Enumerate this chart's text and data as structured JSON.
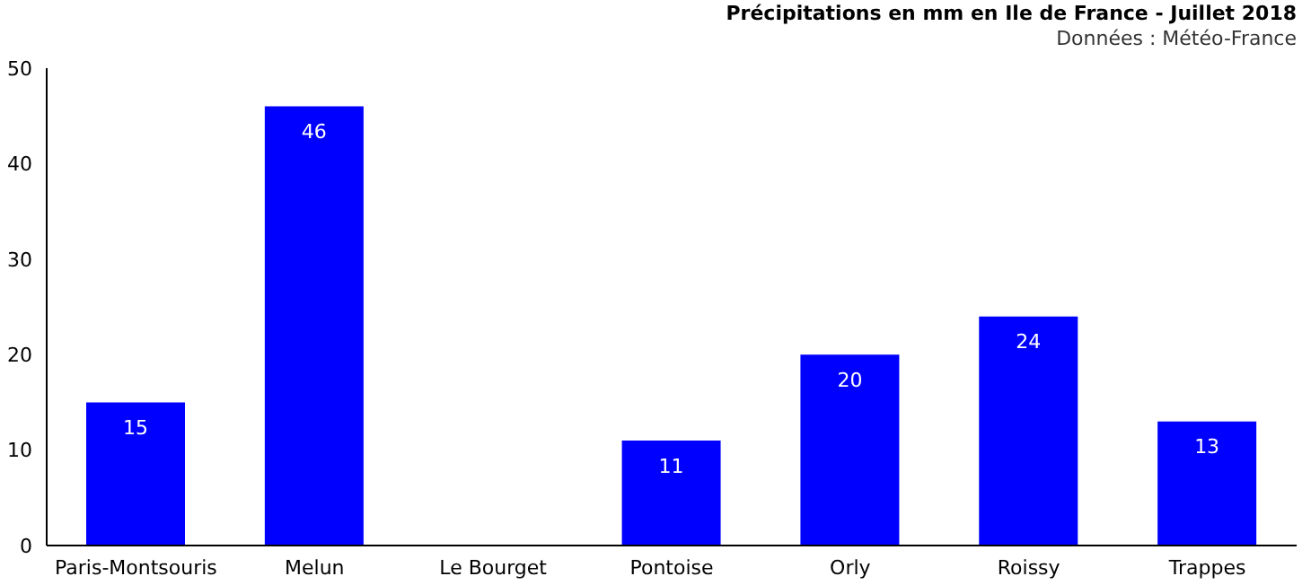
{
  "chart_data": {
    "type": "bar",
    "title": "Précipitations en mm en Ile de France - Juillet 2018",
    "subtitle": "Données : Météo-France",
    "categories": [
      "Paris-Montsouris",
      "Melun",
      "Le Bourget",
      "Pontoise",
      "Orly",
      "Roissy",
      "Trappes"
    ],
    "values": [
      15,
      46,
      null,
      11,
      20,
      24,
      13
    ],
    "color": "#0000ff",
    "ylim": [
      0,
      50
    ],
    "yticks": [
      0,
      10,
      20,
      30,
      40,
      50
    ],
    "data_labels": true
  }
}
